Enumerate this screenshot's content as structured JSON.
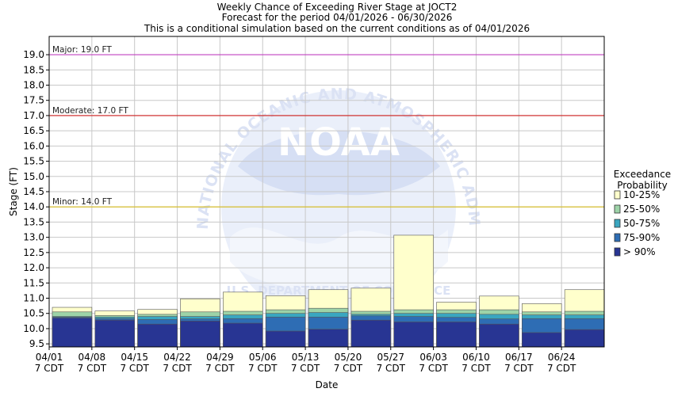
{
  "chart_data": {
    "type": "bar",
    "title": "Weekly Chance of Exceeding River Stage at JOCT2",
    "subtitle1": "Forecast for the period 04/01/2026 - 06/30/2026",
    "subtitle2": "This is a conditional simulation based on the current conditions as of 04/01/2026",
    "xlabel": "Date",
    "ylabel": "Stage (FT)",
    "ylim": [
      9.4,
      19.6
    ],
    "yticks": [
      "9.5",
      "10.0",
      "10.5",
      "11.0",
      "11.5",
      "12.0",
      "12.5",
      "13.0",
      "13.5",
      "14.0",
      "14.5",
      "15.0",
      "15.5",
      "16.0",
      "16.5",
      "17.0",
      "17.5",
      "18.0",
      "18.5",
      "19.0"
    ],
    "grid": true,
    "categories": [
      "04/01",
      "04/08",
      "04/15",
      "04/22",
      "04/29",
      "05/06",
      "05/13",
      "05/20",
      "05/27",
      "06/03",
      "06/10",
      "06/17",
      "06/24"
    ],
    "tick_sublabel": "7 CDT",
    "thresholds": [
      {
        "label": "Major: 19.0 FT",
        "value": 19.0,
        "color": "#c040c0"
      },
      {
        "label": "Moderate: 17.0 FT",
        "value": 17.0,
        "color": "#d02020"
      },
      {
        "label": "Minor: 14.0 FT",
        "value": 14.0,
        "color": "#d8c030"
      }
    ],
    "series": [
      {
        "name": "> 90%",
        "color": "#283593",
        "values": [
          10.35,
          10.28,
          10.15,
          10.25,
          10.18,
          9.92,
          9.98,
          10.28,
          10.22,
          10.22,
          10.15,
          9.87,
          9.97
        ]
      },
      {
        "name": "75-90%",
        "color": "#2e6db4",
        "values": [
          10.38,
          10.33,
          10.3,
          10.32,
          10.33,
          10.38,
          10.38,
          10.42,
          10.4,
          10.37,
          10.32,
          10.33,
          10.33
        ]
      },
      {
        "name": "50-75%",
        "color": "#3aa6c0",
        "values": [
          10.4,
          10.38,
          10.4,
          10.4,
          10.45,
          10.5,
          10.53,
          10.47,
          10.5,
          10.5,
          10.47,
          10.45,
          10.45
        ]
      },
      {
        "name": "25-50%",
        "color": "#9dd3a8",
        "values": [
          10.55,
          10.43,
          10.47,
          10.55,
          10.57,
          10.62,
          10.67,
          10.57,
          10.62,
          10.62,
          10.62,
          10.55,
          10.57
        ]
      },
      {
        "name": "10-25%",
        "color": "#ffffcc",
        "values": [
          10.7,
          10.58,
          10.63,
          10.98,
          11.2,
          11.08,
          11.28,
          11.33,
          13.07,
          10.87,
          11.07,
          10.82,
          11.28
        ]
      }
    ],
    "legend_title_1": "Exceedance",
    "legend_title_2": "Probability",
    "legend_order": [
      "10-25%",
      "25-50%",
      "50-75%",
      "75-90%",
      "> 90%"
    ],
    "legend_position": "right"
  },
  "watermark": {
    "upper_arc_text": "NATIONAL OCEANIC AND ATMOSPHERIC ADMINISTRATION",
    "center_text": "NOAA",
    "lower_text": "U.S. DEPARTMENT OF COMMERCE"
  }
}
